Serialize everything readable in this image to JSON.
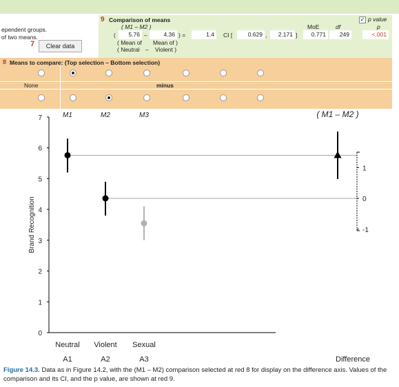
{
  "left_text": {
    "line1": "ependent groups.",
    "line2": "of two means."
  },
  "red7": "7",
  "clear_button": "Clear data",
  "comparison": {
    "red_num": "9",
    "title": "Comparison of means",
    "subtitle": "( M1 – M2 )",
    "open_paren": "(",
    "mean1": "5.76",
    "minus": "–",
    "mean2": "4.36",
    "close_eq": ") =",
    "diff": "1.4",
    "ci_label": "CI [",
    "ci_low": "0.629",
    "ci_sep": ",",
    "ci_high": "2.171",
    "ci_close": "]",
    "mean_of_label": "( Mean of",
    "mean_of_label2": "Mean of )",
    "neutral_label": "( Neutral",
    "dash": "–",
    "violent_label": "Violent )",
    "moe_label": "MoE",
    "df_label": "df",
    "moe": "0.771",
    "df": "249",
    "pvalue_label": "p value",
    "p_label": "p",
    "p": "<.001"
  },
  "means_compare": {
    "red_num": "8",
    "label": "Means to compare: (Top selection – Bottom selection)",
    "none_label": "None",
    "minus_label": "minus"
  },
  "chart": {
    "ylabel": "Brand Recognition",
    "yticks": [
      "0",
      "1",
      "2",
      "3",
      "4",
      "5",
      "6",
      "7"
    ],
    "diff_ticks": [
      "1",
      "0",
      "-1"
    ],
    "col_labels": [
      "M1",
      "M2",
      "M3"
    ],
    "diff_label": "( M1 – M2 )",
    "categories": [
      "Neutral",
      "Violent",
      "Sexual"
    ],
    "groups": [
      "A1",
      "A2",
      "A3"
    ],
    "difference_label": "Difference"
  },
  "chart_data": {
    "type": "scatter",
    "title": "",
    "ylabel": "Brand Recognition",
    "ylim": [
      0,
      7
    ],
    "categories": [
      "Neutral",
      "Violent",
      "Sexual"
    ],
    "series": [
      {
        "name": "M1",
        "category": "Neutral",
        "mean": 5.76,
        "ci": [
          5.2,
          6.3
        ],
        "color": "#000000"
      },
      {
        "name": "M2",
        "category": "Violent",
        "mean": 4.36,
        "ci": [
          3.8,
          4.9
        ],
        "color": "#000000"
      },
      {
        "name": "M3",
        "category": "Sexual",
        "mean": 3.55,
        "ci": [
          3.0,
          4.1
        ],
        "color": "#b3b3b3"
      }
    ],
    "difference": {
      "name": "( M1 – M2 )",
      "value": 1.4,
      "ci": [
        0.629,
        2.171
      ],
      "axis_range": [
        -1,
        1
      ]
    }
  },
  "caption": {
    "label": "Figure 14.3.",
    "text": "Data as in Figure 14.2, with the (M1 – M2) comparison selected at red 8 for display on the difference axis. Values of the comparison and its CI, and the p value, are shown at red 9."
  }
}
